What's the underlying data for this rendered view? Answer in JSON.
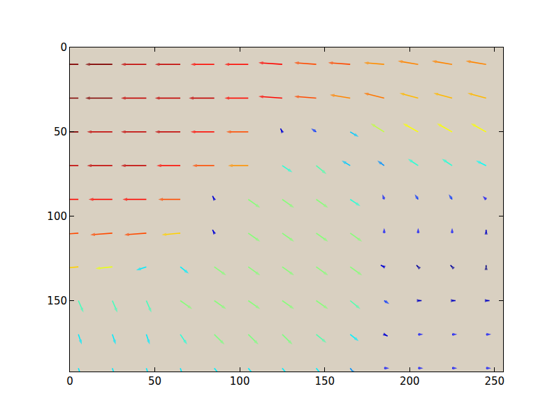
{
  "chart_data": {
    "type": "quiver",
    "color": "jet",
    "grid": false,
    "x": [
      5,
      25,
      45,
      65,
      85,
      105,
      125,
      145,
      165,
      185,
      205,
      225,
      245
    ],
    "y": [
      10,
      30,
      50,
      70,
      90,
      110,
      130,
      150,
      170,
      190
    ],
    "u": [
      [
        -16,
        -16,
        -15,
        -15,
        -14,
        -14,
        -14,
        -13,
        -13,
        -12,
        -12,
        -12,
        -12
      ],
      [
        -16,
        -16,
        -15,
        -15,
        -15,
        -14,
        -14,
        -13,
        -12,
        -12,
        -11,
        -11,
        -11
      ],
      [
        -16,
        -15,
        -15,
        -15,
        -14,
        -13,
        -1,
        -3,
        5,
        -8,
        -9,
        -9,
        -9
      ],
      [
        -15,
        -15,
        -15,
        -14,
        -13,
        -12,
        6,
        6,
        -5,
        -4,
        -6,
        -6,
        -6
      ],
      [
        -14,
        -14,
        -14,
        -13,
        -1,
        7,
        7,
        7,
        6,
        -1,
        -2,
        -2,
        -2
      ],
      [
        -13,
        -13,
        -13,
        -11,
        -1,
        7,
        7,
        7,
        7,
        0,
        0,
        0,
        0
      ],
      [
        -11,
        -10,
        -6,
        5,
        7,
        7,
        7,
        7,
        7,
        -2,
        -1,
        -1,
        0
      ],
      [
        3,
        3,
        3,
        7,
        7,
        7,
        7,
        7,
        6,
        3,
        2,
        2,
        2
      ],
      [
        2,
        2,
        2,
        4,
        6,
        6,
        6,
        6,
        5,
        2,
        3,
        3,
        3
      ],
      [
        2,
        2,
        2,
        2,
        4,
        4,
        4,
        4,
        3,
        3,
        3,
        3,
        3
      ]
    ],
    "v": [
      [
        0,
        0,
        0,
        0,
        0,
        0,
        -1,
        -1,
        -1,
        -1,
        -2,
        -2,
        -2
      ],
      [
        0,
        0,
        0,
        0,
        0,
        0,
        -1,
        -1,
        -2,
        -3,
        -3,
        -3,
        -3
      ],
      [
        0,
        0,
        0,
        0,
        0,
        0,
        -2,
        -2,
        3,
        -5,
        -5,
        -5,
        -5
      ],
      [
        0,
        0,
        0,
        0,
        0,
        0,
        4,
        5,
        -3,
        -3,
        -4,
        -4,
        -3
      ],
      [
        0,
        0,
        0,
        0,
        -2,
        5,
        5,
        5,
        4,
        -3,
        -3,
        -3,
        -2
      ],
      [
        1,
        1,
        1,
        1,
        -2,
        5,
        5,
        5,
        5,
        -3,
        -3,
        -3,
        -2
      ],
      [
        1,
        1,
        2,
        4,
        5,
        5,
        5,
        5,
        5,
        -1,
        -1,
        -1,
        -1
      ],
      [
        7,
        7,
        7,
        5,
        5,
        5,
        5,
        5,
        5,
        2,
        0,
        0,
        0
      ],
      [
        6,
        6,
        6,
        6,
        6,
        6,
        6,
        5,
        4,
        1,
        0,
        0,
        0
      ],
      [
        6,
        6,
        6,
        6,
        5,
        5,
        5,
        5,
        4,
        0,
        0,
        0,
        0
      ]
    ],
    "xlim": [
      0,
      255
    ],
    "ylim": [
      192,
      0
    ],
    "xticks": [
      0,
      50,
      100,
      150,
      200,
      250
    ],
    "yticks": [
      0,
      50,
      100,
      150
    ]
  }
}
